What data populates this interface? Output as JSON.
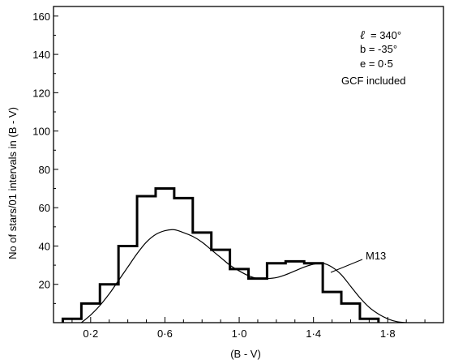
{
  "chart_data": {
    "type": "line",
    "xlabel": "(B - V)",
    "ylabel": "No of stars/01 intervals in (B - V)",
    "xlim": [
      0.0,
      2.1
    ],
    "ylim": [
      0,
      165
    ],
    "x_ticks": [
      0.2,
      0.6,
      1.0,
      1.4,
      1.8
    ],
    "x_tick_labels": [
      "0·2",
      "0·6",
      "1·0",
      "1·4",
      "1·8"
    ],
    "y_ticks": [
      20,
      40,
      60,
      80,
      100,
      120,
      140,
      160
    ],
    "y_tick_labels": [
      "20",
      "40",
      "60",
      "80",
      "100",
      "120",
      "140",
      "160"
    ],
    "grid": false,
    "annotation": {
      "l_symbol": "ℓ",
      "l_value": "= 340°",
      "b": "b  =  -35°",
      "e": "e  =  0·5",
      "gcf": "GCF included"
    },
    "series": [
      {
        "style": "histogram",
        "bin_width": 0.1,
        "bin_left_edges": [
          0.05,
          0.15,
          0.25,
          0.35,
          0.45,
          0.55,
          0.65,
          0.75,
          0.85,
          0.95,
          1.05,
          1.15,
          1.25,
          1.35,
          1.45,
          1.55,
          1.65
        ],
        "values": [
          2,
          10,
          20,
          40,
          66,
          70,
          65,
          47,
          38,
          28,
          23,
          31,
          32,
          31,
          16,
          10,
          2
        ]
      },
      {
        "name": "M13",
        "style": "curve",
        "x": [
          0.15,
          0.2,
          0.25,
          0.3,
          0.35,
          0.4,
          0.45,
          0.5,
          0.55,
          0.6,
          0.65,
          0.7,
          0.75,
          0.8,
          0.85,
          0.9,
          0.95,
          1.0,
          1.05,
          1.1,
          1.15,
          1.2,
          1.25,
          1.3,
          1.35,
          1.4,
          1.45,
          1.5,
          1.55,
          1.6,
          1.65,
          1.7,
          1.75,
          1.8,
          1.85,
          1.9
        ],
        "y": [
          0,
          4,
          9,
          15,
          22,
          29,
          36,
          42,
          46,
          48,
          48.5,
          47,
          45,
          42,
          38,
          34,
          30,
          27,
          24.5,
          23,
          23,
          23.5,
          25,
          27,
          29,
          30.5,
          31,
          29,
          25,
          19,
          13,
          8,
          4.5,
          2,
          0.5,
          0
        ]
      }
    ]
  }
}
